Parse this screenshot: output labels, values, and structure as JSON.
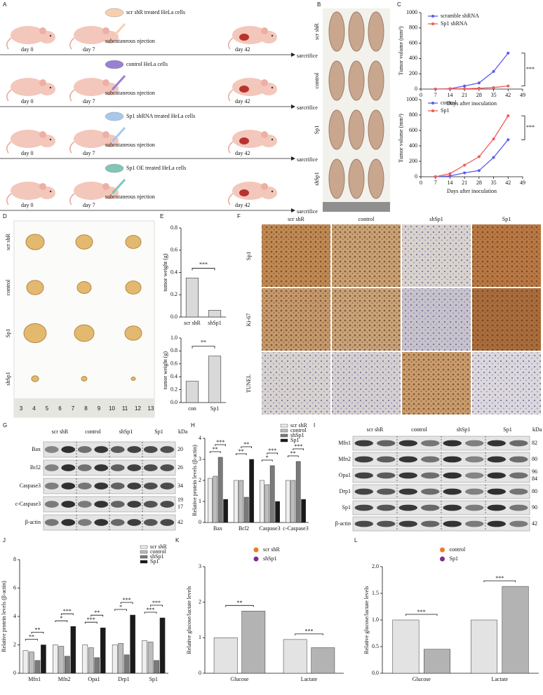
{
  "panel_letters": [
    "A",
    "B",
    "C",
    "D",
    "E",
    "F",
    "G",
    "H",
    "I",
    "J",
    "K",
    "L"
  ],
  "schematic": {
    "rows": [
      {
        "cells": "scr shR treated HeLa cells"
      },
      {
        "cells": "control HeLa cells"
      },
      {
        "cells": "Sp1 shRNA treated HeLa cells"
      },
      {
        "cells": "Sp1 OE treated HeLa cells"
      }
    ],
    "injection": "subcutaneous njection",
    "days": [
      "day 0",
      "day 7",
      "day 42"
    ],
    "endpoint": "sarcrifice"
  },
  "mice_photo": {
    "groups": [
      "scr shR",
      "control",
      "Sp1",
      "shSp1"
    ]
  },
  "tumor_photo": {
    "groups": [
      "scr shR",
      "control",
      "Sp1",
      "shSp1"
    ],
    "ruler": [
      "3",
      "4",
      "5",
      "6",
      "7",
      "8",
      "9",
      "10",
      "11",
      "12",
      "13"
    ]
  },
  "ihc": {
    "columns": [
      "scr shR",
      "control",
      "shSp1",
      "Sp1"
    ],
    "rows": [
      "Sp1",
      "Ki-67",
      "TUNEL"
    ]
  },
  "blots": [
    {
      "columns": [
        "scr shR",
        "control",
        "shSp1",
        "Sp1"
      ],
      "unit": "kDa",
      "rows": [
        {
          "label": "Bax",
          "kda": [
            "20"
          ]
        },
        {
          "label": "Bcl2",
          "kda": [
            "26"
          ]
        },
        {
          "label": "Caspase3",
          "kda": [
            "34"
          ]
        },
        {
          "label": "c-Caspase3",
          "kda": [
            "19",
            "17"
          ]
        },
        {
          "label": "β-actin",
          "kda": [
            "42"
          ]
        }
      ]
    },
    {
      "columns": [
        "scr shR",
        "control",
        "shSp1",
        "Sp1"
      ],
      "unit": "kDa",
      "rows": [
        {
          "label": "Mfn1",
          "kda": [
            "82"
          ]
        },
        {
          "label": "Mfn2",
          "kda": [
            "80"
          ]
        },
        {
          "label": "Opa1",
          "kda": [
            "96",
            "84"
          ]
        },
        {
          "label": "Drp1",
          "kda": [
            "80"
          ]
        },
        {
          "label": "Sp1",
          "kda": [
            "90"
          ]
        },
        {
          "label": "β-actin",
          "kda": [
            "42"
          ]
        }
      ]
    }
  ],
  "chart_data": [
    {
      "type": "line",
      "xlabel": "Days after inoculation",
      "ylabel": "Tumor volume (mm³)",
      "x": [
        7,
        14,
        21,
        28,
        35,
        42
      ],
      "xlim": [
        0,
        49
      ],
      "xticks": [
        0,
        7,
        14,
        21,
        28,
        35,
        42,
        49
      ],
      "ylim": [
        0,
        1000
      ],
      "yticks": [
        0,
        200,
        400,
        600,
        800,
        1000
      ],
      "series": [
        {
          "name": "scramble shRNA",
          "color": "#5a5af0",
          "values": [
            0,
            5,
            40,
            80,
            230,
            470
          ]
        },
        {
          "name": "Sp1 shRNA",
          "color": "#f05a5a",
          "values": [
            0,
            2,
            5,
            10,
            20,
            40
          ]
        }
      ],
      "legend": "upper left",
      "annotations": [
        "***"
      ]
    },
    {
      "type": "line",
      "xlabel": "Days after inoculation",
      "ylabel": "Tumor volume (mm³)",
      "x": [
        7,
        14,
        21,
        28,
        35,
        42
      ],
      "xlim": [
        0,
        49
      ],
      "xticks": [
        0,
        7,
        14,
        21,
        28,
        35,
        42,
        49
      ],
      "ylim": [
        0,
        1000
      ],
      "yticks": [
        0,
        200,
        400,
        600,
        800,
        1000
      ],
      "series": [
        {
          "name": "control",
          "color": "#5a5af0",
          "values": [
            0,
            10,
            50,
            80,
            250,
            480
          ]
        },
        {
          "name": "Sp1",
          "color": "#f05a5a",
          "values": [
            0,
            40,
            150,
            260,
            490,
            790
          ]
        }
      ],
      "legend": "upper left",
      "annotations": [
        "***"
      ]
    },
    {
      "type": "bar",
      "ylabel": "tumor weight (g)",
      "categories": [
        "scr shR",
        "shSp1"
      ],
      "values": [
        0.35,
        0.06
      ],
      "color": "#d9d9d9",
      "ylim": [
        0,
        0.8
      ],
      "yticks": [
        {
          "value": 0,
          "label": "0.0"
        },
        0.2,
        0.4,
        0.6,
        0.8
      ],
      "annotations": [
        "***"
      ]
    },
    {
      "type": "bar",
      "ylabel": "tumor weight (g)",
      "categories": [
        "con",
        "Sp1"
      ],
      "values": [
        0.33,
        0.72
      ],
      "color": "#d9d9d9",
      "ylim": [
        0,
        1
      ],
      "yticks": [
        {
          "value": 0,
          "label": "0.0"
        },
        0.2,
        0.4,
        0.6,
        0.8,
        {
          "value": 1,
          "label": "1.0"
        }
      ],
      "annotations": [
        "**"
      ]
    },
    {
      "type": "bar",
      "ylabel": "Relative protein levels (β-actin)",
      "categories": [
        "Bax",
        "Bcl2",
        "Caspase3",
        "c-Caspase3"
      ],
      "series": [
        {
          "name": "scr shR",
          "color": "#eeeeee",
          "values": [
            2.1,
            2.0,
            2.0,
            2.0
          ]
        },
        {
          "name": "control",
          "color": "#bdbdbd",
          "values": [
            2.2,
            2.0,
            1.8,
            2.0
          ]
        },
        {
          "name": "shSp1",
          "color": "#7a7a7a",
          "values": [
            3.1,
            1.2,
            2.7,
            2.9
          ]
        },
        {
          "name": "Sp1",
          "color": "#1a1a1a",
          "values": [
            1.1,
            3.0,
            1.0,
            1.1
          ]
        }
      ],
      "ylim": [
        0,
        4
      ],
      "yticks": [
        0,
        1,
        2,
        3,
        4
      ],
      "legend": "upper right",
      "annotations": [
        [
          "**",
          "***"
        ],
        [
          "**",
          "**"
        ],
        [
          "*",
          "***"
        ],
        [
          "**",
          "***"
        ]
      ]
    },
    {
      "type": "bar",
      "ylabel": "Relative protein levels (β-actin)",
      "categories": [
        "Mfn1",
        "Mfn2",
        "Opa1",
        "Drp1",
        "Sp1"
      ],
      "series": [
        {
          "name": "scr shR",
          "color": "#eeeeee",
          "values": [
            1.6,
            2.0,
            2.0,
            2.0,
            2.3
          ]
        },
        {
          "name": "control",
          "color": "#bdbdbd",
          "values": [
            1.5,
            1.9,
            1.8,
            2.1,
            2.2
          ]
        },
        {
          "name": "shSp1",
          "color": "#7a7a7a",
          "values": [
            0.9,
            1.2,
            1.1,
            1.3,
            0.9
          ]
        },
        {
          "name": "Sp1",
          "color": "#1a1a1a",
          "values": [
            2.0,
            3.3,
            3.2,
            4.1,
            3.9
          ]
        }
      ],
      "ylim": [
        0,
        8
      ],
      "yticks": [
        0,
        2,
        4,
        6,
        8
      ],
      "legend": "upper right",
      "annotations": [
        [
          "**",
          "**"
        ],
        [
          "*",
          "***"
        ],
        [
          "***",
          "**"
        ],
        [
          "*",
          "***"
        ],
        [
          "***",
          "***"
        ]
      ]
    },
    {
      "type": "bar",
      "ylabel": "Relative glucose/lactate levels",
      "categories": [
        "Glucose",
        "Lactate"
      ],
      "series": [
        {
          "name": "scr shR",
          "color": "#f07b22",
          "values": [
            1.0,
            0.95
          ]
        },
        {
          "name": "shSp1",
          "color": "#7e2f8e",
          "values": [
            1.75,
            0.72
          ]
        }
      ],
      "bar_colors": [
        "#e3e3e3",
        "#b3b3b3"
      ],
      "ylim": [
        0,
        3
      ],
      "yticks": [
        0,
        1,
        2,
        3
      ],
      "legend": "upper center",
      "annotations": [
        [
          "**"
        ],
        [
          "***"
        ]
      ]
    },
    {
      "type": "bar",
      "ylabel": "Relative glucose/lactate levels",
      "categories": [
        "Glucose",
        "Lactate"
      ],
      "series": [
        {
          "name": "control",
          "color": "#f07b22",
          "values": [
            1.0,
            1.0
          ]
        },
        {
          "name": "Sp1",
          "color": "#7e2f8e",
          "values": [
            0.45,
            1.63
          ]
        }
      ],
      "bar_colors": [
        "#e3e3e3",
        "#b3b3b3"
      ],
      "ylim": [
        0,
        2
      ],
      "yticks": [
        {
          "value": 0,
          "label": "0.0"
        },
        0.5,
        {
          "value": 1,
          "label": "1.0"
        },
        1.5,
        {
          "value": 2,
          "label": "2.0"
        }
      ],
      "legend": "upper center",
      "annotations": [
        [
          "***"
        ],
        [
          "***"
        ]
      ]
    }
  ]
}
